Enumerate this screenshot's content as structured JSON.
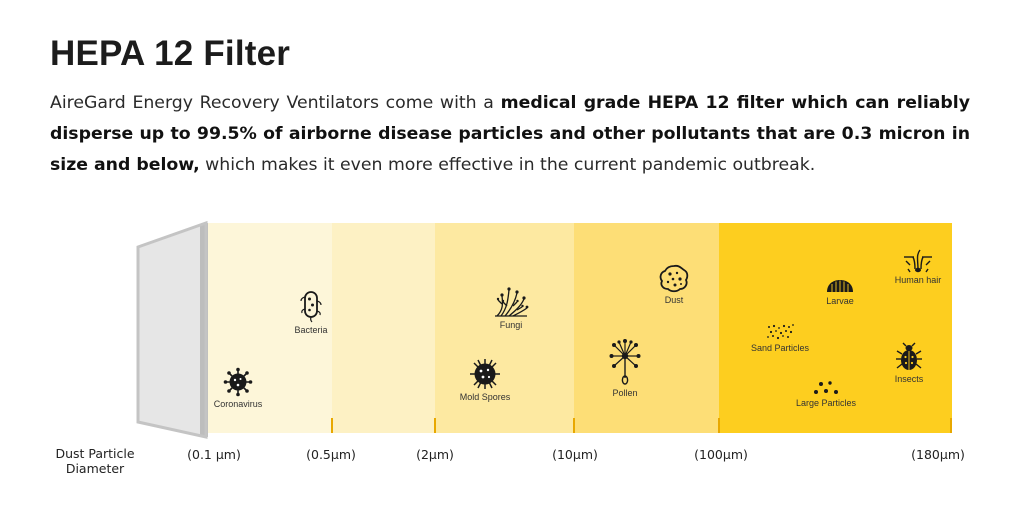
{
  "header": {
    "title": "HEPA 12 Filter",
    "desc_part1": "AireGard Energy Recovery Ventilators come with a ",
    "desc_bold": "medical grade HEPA 12 filter which can reliably disperse up to 99.5% of airborne disease particles and other pollutants that are 0.3 micron in size and below,",
    "desc_part2": " which makes it even more effective in the current pandemic outbreak."
  },
  "diagram": {
    "axis_title_line1": "Dust Particle",
    "axis_title_line2": "Diameter",
    "ticks": [
      "(0.1 μm)",
      "(0.5μm)",
      "(2μm)",
      "(10μm)",
      "(100μm)",
      "(180μm)"
    ],
    "band_colors": [
      "#fdf6d9",
      "#fdf1c4",
      "#fde9a1",
      "#fdde76",
      "#fdce1f"
    ],
    "filter_colors": {
      "face": "#e6e6e6",
      "edge": "#bdbdbd"
    },
    "particles": {
      "coronavirus": "Coronavirus",
      "bacteria": "Bacteria",
      "fungi": "Fungi",
      "mold_spores": "Mold Spores",
      "dust": "Dust",
      "pollen": "Pollen",
      "larvae": "Larvae",
      "human_hair": "Human hair",
      "sand_particles": "Sand Particles",
      "insects": "Insects",
      "large_particles": "Large Particles"
    }
  }
}
